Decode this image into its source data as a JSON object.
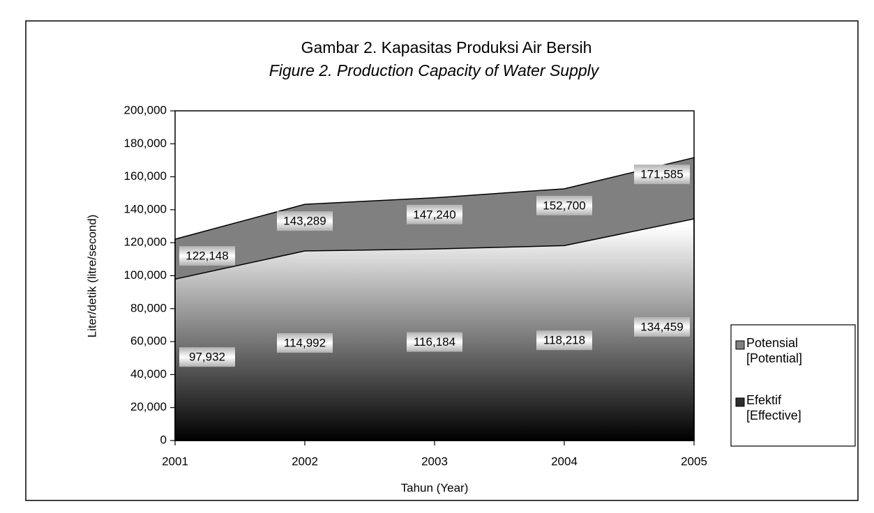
{
  "chart_data": {
    "type": "area",
    "title": "Gambar 2. Kapasitas Produksi Air Bersih",
    "subtitle": "Figure 2. Production Capacity of Water Supply",
    "x_label": "Tahun (Year)",
    "y_label": "Liter/detik (litre/second)",
    "categories": [
      "2001",
      "2002",
      "2003",
      "2004",
      "2005"
    ],
    "series": [
      {
        "name": "Potensial [Potential]",
        "color": "#808080",
        "values": [
          122148,
          143289,
          147240,
          152700,
          171585
        ],
        "value_labels": [
          "122,148",
          "143,289",
          "147,240",
          "152,700",
          "171,585"
        ]
      },
      {
        "name": "Efektif [Effective]",
        "color": "#ffffff",
        "values": [
          97932,
          114992,
          116184,
          118218,
          134459
        ],
        "value_labels": [
          "97,932",
          "114,992",
          "116,184",
          "118,218",
          "134,459"
        ]
      }
    ],
    "ylim": [
      0,
      200000
    ],
    "yticks": [
      {
        "value": 0,
        "label": "0"
      },
      {
        "value": 20000,
        "label": "20,000"
      },
      {
        "value": 40000,
        "label": "40,000"
      },
      {
        "value": 60000,
        "label": "60,000"
      },
      {
        "value": 80000,
        "label": "80,000"
      },
      {
        "value": 100000,
        "label": "100,000"
      },
      {
        "value": 120000,
        "label": "120,000"
      },
      {
        "value": 140000,
        "label": "140,000"
      },
      {
        "value": 160000,
        "label": "160,000"
      },
      {
        "value": 180000,
        "label": "180,000"
      },
      {
        "value": 200000,
        "label": "200,000"
      }
    ],
    "legend": "right"
  }
}
